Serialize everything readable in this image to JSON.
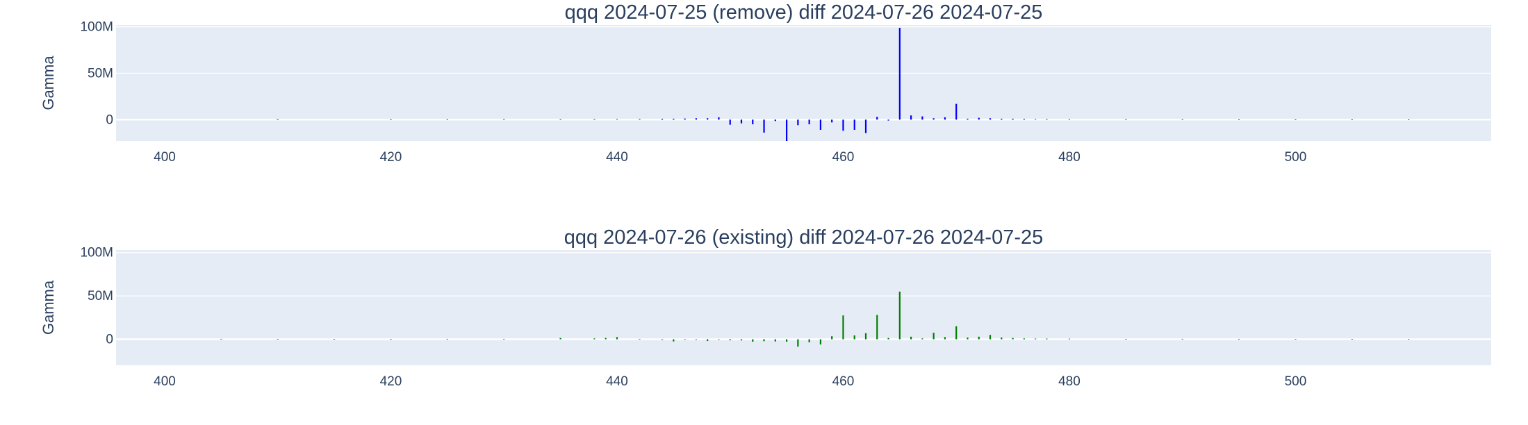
{
  "colors": {
    "background": "#ffffff",
    "plot_bg": "#e5ecf6",
    "grid": "#ffffff",
    "text": "#2a3f5f"
  },
  "chart_data": [
    {
      "type": "bar",
      "title": "qqq 2024-07-25 (remove) diff 2024-07-26 2024-07-25",
      "xlabel": "",
      "ylabel": "Gamma",
      "xlim": [
        395.7,
        517.3
      ],
      "ylim": [
        -23000000,
        102000000
      ],
      "xticks": [
        400,
        420,
        440,
        460,
        480,
        500
      ],
      "xtick_labels": [
        "400",
        "420",
        "440",
        "460",
        "480",
        "500"
      ],
      "yticks": [
        0,
        50000000,
        100000000
      ],
      "ytick_labels": [
        "0",
        "50M",
        "100M"
      ],
      "grid": true,
      "series": [
        {
          "color": "#0000ff",
          "x": [
            410,
            420,
            425,
            430,
            435,
            438,
            440,
            442,
            444,
            445,
            446,
            447,
            448,
            449,
            450,
            451,
            452,
            453,
            454,
            455,
            456,
            457,
            458,
            459,
            460,
            461,
            462,
            463,
            464,
            465,
            466,
            467,
            468,
            469,
            470,
            471,
            472,
            473,
            474,
            475,
            476,
            477,
            478,
            480,
            485,
            490,
            495,
            500,
            505,
            510
          ],
          "y": [
            300000,
            300000,
            400000,
            400000,
            400000,
            500000,
            600000,
            700000,
            900000,
            1000000,
            1200000,
            1500000,
            1500000,
            2500000,
            -5500000,
            -4000000,
            -5000000,
            -14000000,
            -1500000,
            -23000000,
            -6000000,
            -5000000,
            -11000000,
            -3000000,
            -12000000,
            -11000000,
            -14500000,
            3000000,
            -1000000,
            99000000,
            4500000,
            3500000,
            1500000,
            2500000,
            17000000,
            1000000,
            2000000,
            1500000,
            1000000,
            1000000,
            800000,
            600000,
            500000,
            500000,
            400000,
            400000,
            300000,
            300000,
            300000,
            200000
          ]
        }
      ]
    },
    {
      "type": "bar",
      "title": "qqq 2024-07-26 (existing) diff 2024-07-26 2024-07-25",
      "xlabel": "",
      "ylabel": "Gamma",
      "xlim": [
        395.7,
        517.3
      ],
      "ylim": [
        -30000000,
        103000000
      ],
      "xticks": [
        400,
        420,
        440,
        460,
        480,
        500
      ],
      "xtick_labels": [
        "400",
        "420",
        "440",
        "460",
        "480",
        "500"
      ],
      "yticks": [
        0,
        50000000,
        100000000
      ],
      "ytick_labels": [
        "0",
        "50M",
        "100M"
      ],
      "grid": true,
      "series": [
        {
          "color": "#008000",
          "x": [
            405,
            410,
            415,
            420,
            425,
            430,
            435,
            438,
            439,
            440,
            442,
            444,
            445,
            446,
            447,
            448,
            449,
            450,
            451,
            452,
            453,
            454,
            455,
            456,
            457,
            458,
            459,
            460,
            461,
            462,
            463,
            464,
            465,
            466,
            467,
            468,
            469,
            470,
            471,
            472,
            473,
            474,
            475,
            476,
            477,
            478,
            480,
            485,
            490,
            495,
            500,
            505,
            510
          ],
          "y": [
            500000,
            400000,
            400000,
            400000,
            500000,
            500000,
            1500000,
            1000000,
            1500000,
            2500000,
            500000,
            -700000,
            -2500000,
            -600000,
            -500000,
            -2000000,
            -500000,
            -1200000,
            -1300000,
            -2800000,
            -2200000,
            -2500000,
            -2800000,
            -8500000,
            -3500000,
            -6000000,
            3500000,
            27500000,
            4500000,
            7000000,
            28000000,
            1500000,
            55000000,
            3000000,
            1000000,
            7500000,
            2500000,
            15000000,
            2000000,
            3000000,
            5000000,
            2000000,
            1500000,
            1000000,
            800000,
            800000,
            700000,
            500000,
            500000,
            400000,
            400000,
            300000,
            300000
          ]
        }
      ]
    }
  ]
}
